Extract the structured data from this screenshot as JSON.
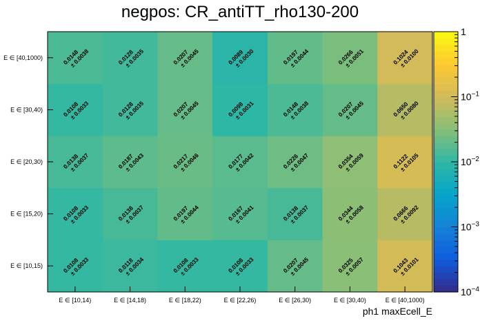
{
  "chart_data": {
    "type": "heatmap",
    "title": "negpos: CR_antiTT_rho130-200",
    "xlabel": "ph1 maxEcell_E",
    "ylabel": "",
    "x_categories": [
      "E ∈ [10,14)",
      "E ∈ [14,18)",
      "E ∈ [18,22)",
      "E ∈ [22,26)",
      "E ∈ [26,30)",
      "E ∈ [30,40)",
      "E ∈ [40,1000)"
    ],
    "y_categories": [
      "E ∈ [10,15)",
      "E ∈ [15,20)",
      "E ∈ [20,30)",
      "E ∈ [30,40)",
      "E ∈ [40,1000)"
    ],
    "values": [
      [
        0.0108,
        0.0118,
        0.0108,
        0.0108,
        0.0207,
        0.0325,
        0.1043
      ],
      [
        0.0108,
        0.0138,
        0.0197,
        0.0167,
        0.0138,
        0.0344,
        0.0666
      ],
      [
        0.0138,
        0.0187,
        0.0217,
        0.0177,
        0.0226,
        0.0354,
        0.1122
      ],
      [
        0.0108,
        0.0128,
        0.0207,
        0.0098,
        0.0148,
        0.0207,
        0.065
      ],
      [
        0.0148,
        0.0128,
        0.0207,
        0.0089,
        0.0197,
        0.0266,
        0.1024
      ]
    ],
    "errors": [
      [
        0.0033,
        0.0034,
        0.0033,
        0.0033,
        0.0045,
        0.0057,
        0.0101
      ],
      [
        0.0033,
        0.0037,
        0.0044,
        0.0041,
        0.0037,
        0.0058,
        0.0092
      ],
      [
        0.0037,
        0.0043,
        0.0046,
        0.0042,
        0.0047,
        0.0059,
        0.0105
      ],
      [
        0.0033,
        0.0035,
        0.0045,
        0.0031,
        0.0038,
        0.0045,
        0.008
      ],
      [
        0.0038,
        0.0035,
        0.0045,
        0.003,
        0.0044,
        0.0051,
        0.01
      ]
    ],
    "error_prefix": "± ",
    "zscale": "log",
    "zlim": [
      0.0001,
      1
    ],
    "colorbar_labels": [
      {
        "value": 1,
        "base": "1",
        "exp": ""
      },
      {
        "value": 0.1,
        "base": "10",
        "exp": "−1"
      },
      {
        "value": 0.01,
        "base": "10",
        "exp": "−2"
      },
      {
        "value": 0.001,
        "base": "10",
        "exp": "−3"
      },
      {
        "value": 0.0001,
        "base": "10",
        "exp": "−4"
      }
    ],
    "palette": [
      "#352a87",
      "#0f5cdd",
      "#1481d6",
      "#06a4ca",
      "#2eb7a4",
      "#87bf77",
      "#d1bb59",
      "#fec832",
      "#f9fb0e"
    ],
    "grid": false
  }
}
